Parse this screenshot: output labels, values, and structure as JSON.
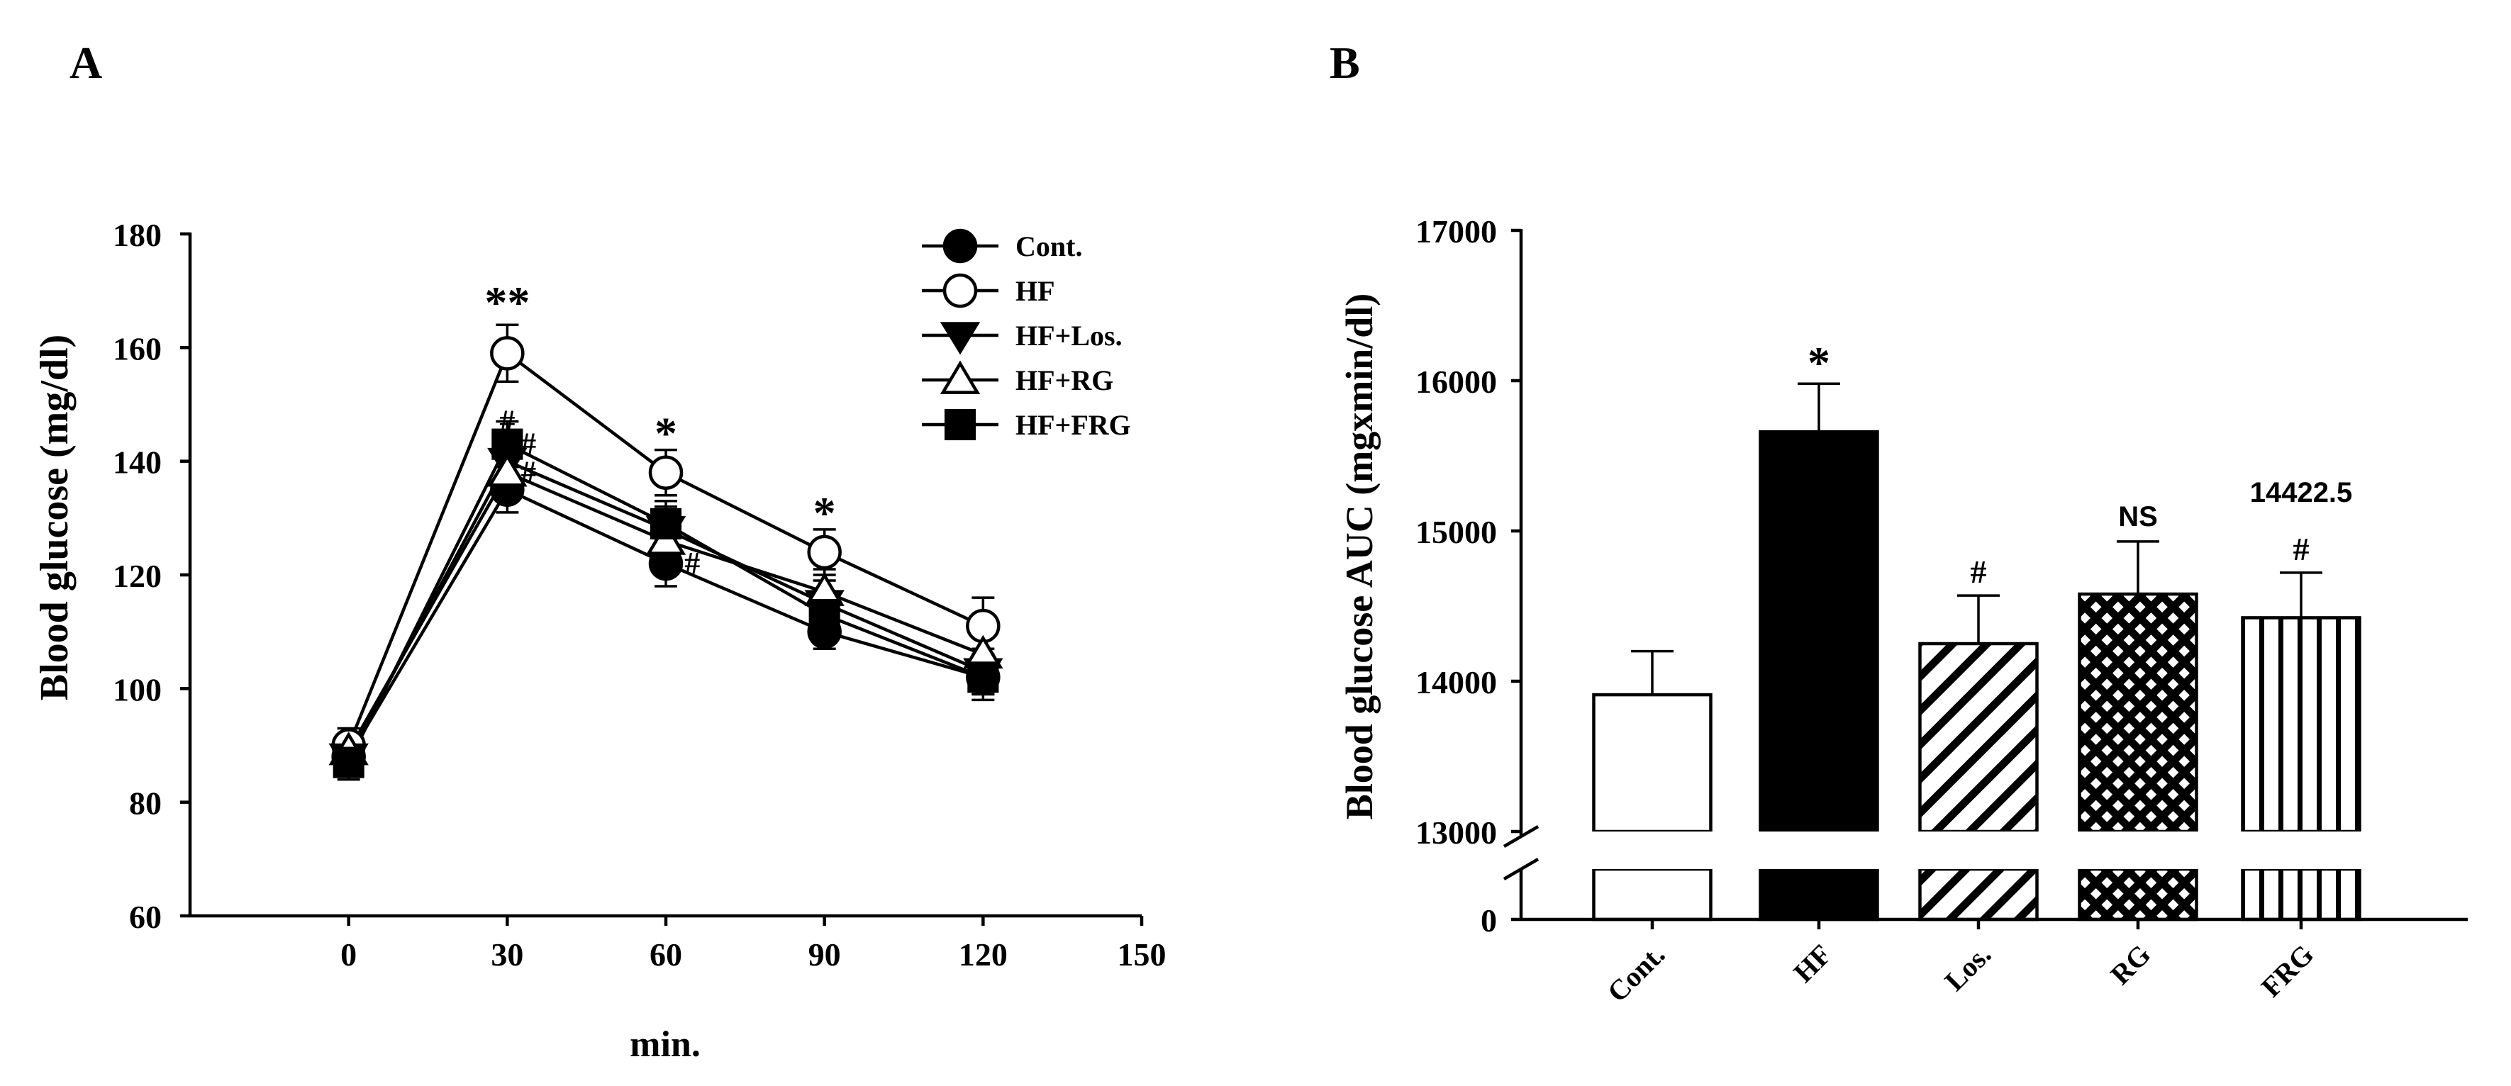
{
  "chart_data": [
    {
      "type": "line",
      "panel_label": "A",
      "xlabel": "min.",
      "ylabel": "Blood glucose (mg/dl)",
      "xlim": [
        -30,
        150
      ],
      "ylim": [
        60,
        180
      ],
      "xticks": [
        0,
        30,
        60,
        90,
        120,
        150
      ],
      "yticks": [
        60,
        80,
        100,
        120,
        140,
        160,
        180
      ],
      "legend_position": "top-right",
      "x": [
        0,
        30,
        60,
        90,
        120
      ],
      "series": [
        {
          "name": "Cont.",
          "marker": "filled-circle",
          "values": [
            88,
            135,
            122,
            110,
            102
          ],
          "errors": [
            3,
            4,
            4,
            3,
            3
          ]
        },
        {
          "name": "HF",
          "marker": "open-circle",
          "values": [
            90,
            159,
            138,
            124,
            111
          ],
          "errors": [
            3,
            5,
            4,
            4,
            5
          ]
        },
        {
          "name": "HF+Los.",
          "marker": "filled-triangle-down",
          "values": [
            88,
            140,
            128,
            115,
            103
          ],
          "errors": [
            3,
            5,
            4,
            4,
            4
          ]
        },
        {
          "name": "HF+RG",
          "marker": "open-triangle",
          "values": [
            89,
            138,
            126,
            117,
            106
          ],
          "errors": [
            3,
            5,
            4,
            4,
            4
          ]
        },
        {
          "name": "HF+FRG",
          "marker": "filled-square",
          "values": [
            87,
            143,
            129,
            113,
            102
          ],
          "errors": [
            3,
            4,
            4,
            4,
            4
          ]
        }
      ],
      "annotations": [
        {
          "text": "**",
          "x": 30,
          "y": 169
        },
        {
          "text": "#",
          "x": 30,
          "y": 147
        },
        {
          "text": "#",
          "x": 34,
          "y": 143
        },
        {
          "text": "#",
          "x": 34,
          "y": 138
        },
        {
          "text": "*",
          "x": 60,
          "y": 146
        },
        {
          "text": "#",
          "x": 65,
          "y": 122
        },
        {
          "text": "*",
          "x": 90,
          "y": 132
        }
      ]
    },
    {
      "type": "bar",
      "panel_label": "B",
      "ylabel": "Blood glucose AUC (mgxmin/dl)",
      "categories": [
        "Cont.",
        "HF",
        "Los.",
        "RG",
        "FRG"
      ],
      "values": [
        13910,
        15660,
        14250,
        14580,
        14422.5
      ],
      "errors": [
        290,
        320,
        320,
        350,
        300
      ],
      "patterns": [
        "white",
        "black",
        "diagonal-hatch",
        "crosshatch",
        "vertical-lines"
      ],
      "yticks": [
        0,
        13000,
        14000,
        15000,
        16000,
        17000
      ],
      "ylim": [
        13000,
        17000
      ],
      "axis_break": true,
      "bar_labels": [
        "",
        "*",
        "#",
        "NS",
        "#"
      ],
      "value_label": {
        "category": "FRG",
        "text": "14422.5"
      }
    }
  ]
}
